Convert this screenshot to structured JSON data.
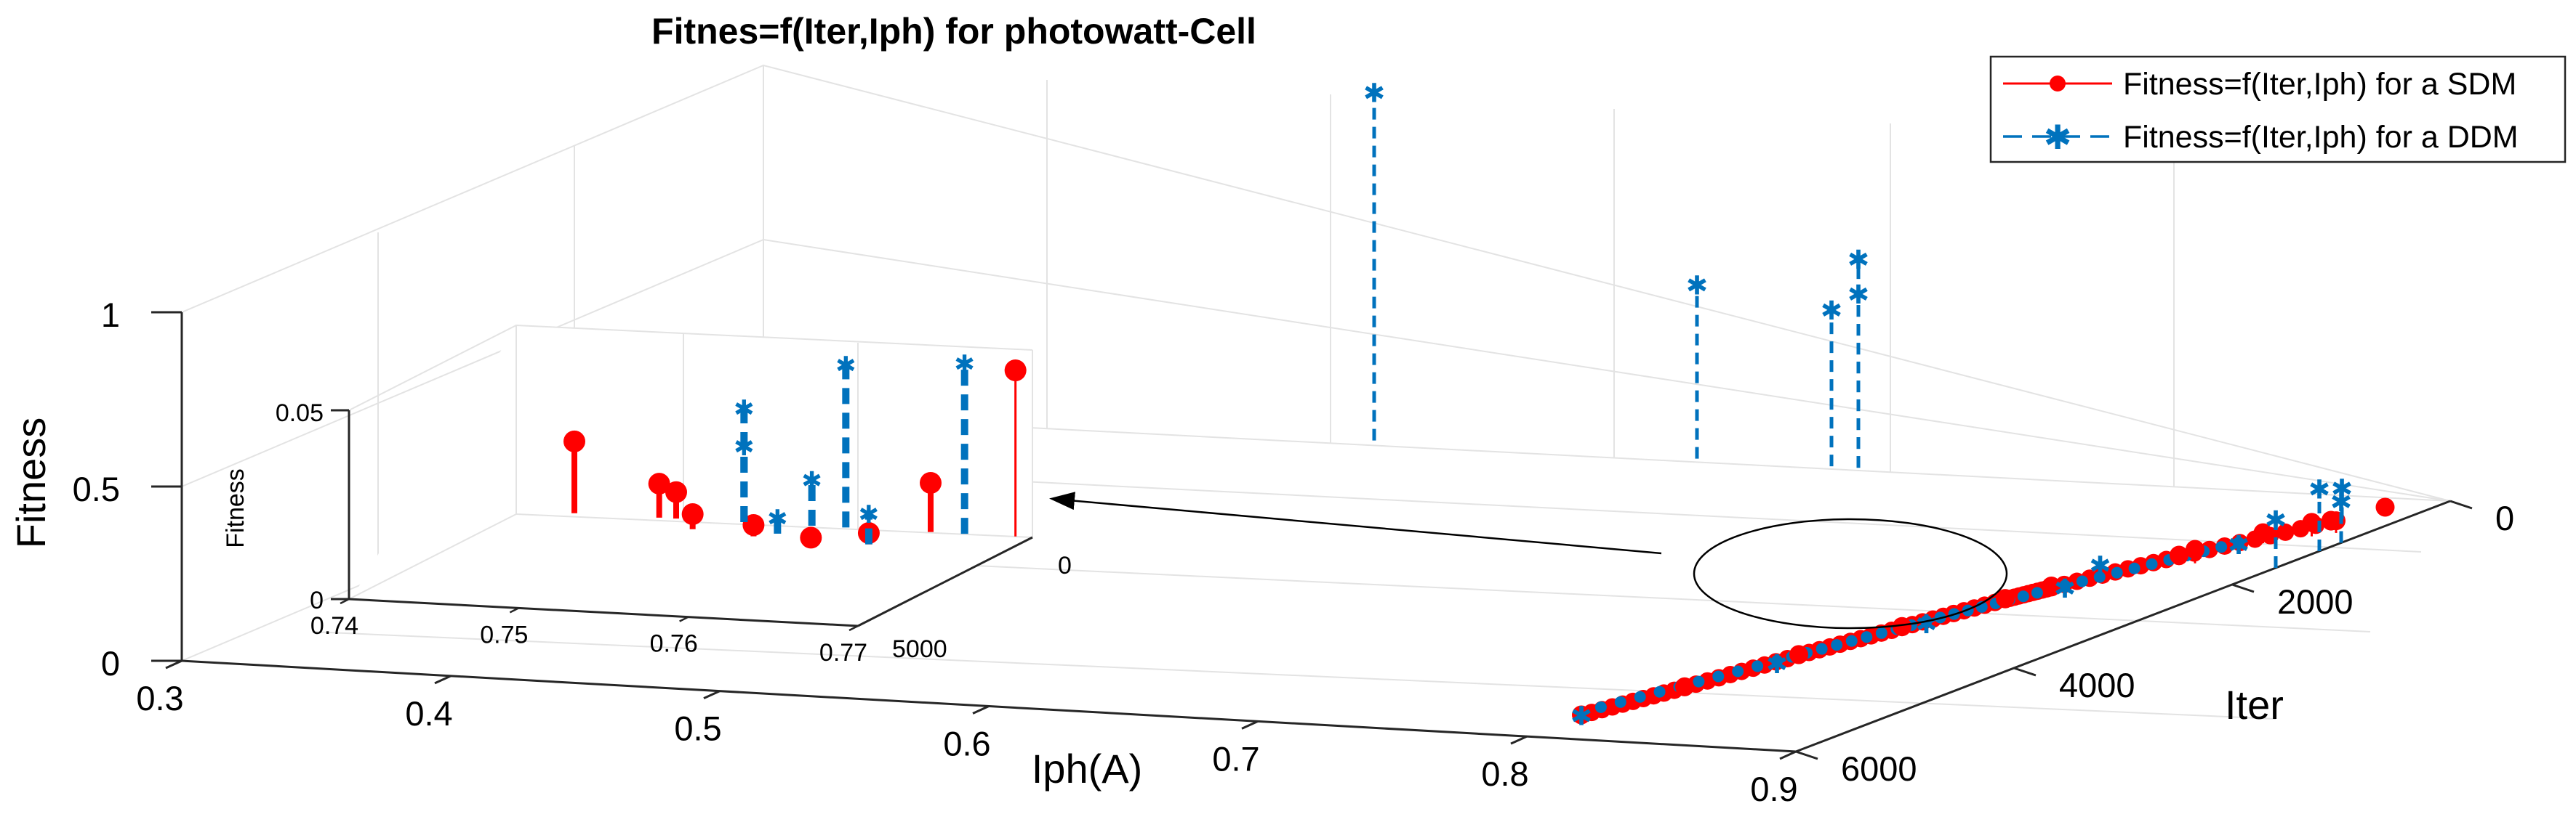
{
  "chart_data": [
    {
      "type": "3d-stem",
      "title": "Fitnes=f(Iter,Iph) for photowatt-Cell",
      "xlabel": "Iph(A)",
      "ylabel": "Iter",
      "zlabel": "Fitness",
      "xlim": [
        0.3,
        0.9
      ],
      "ylim": [
        0,
        6000
      ],
      "zlim": [
        0,
        1
      ],
      "x_ticks": [
        "0.3",
        "0.4",
        "0.5",
        "0.6",
        "0.7",
        "0.8",
        "0.9"
      ],
      "y_ticks": [
        "0",
        "2000",
        "4000",
        "6000"
      ],
      "z_ticks": [
        "0",
        "0.5",
        "1"
      ],
      "legend": [
        {
          "label": "Fitness=f(Iter,Iph) for a SDM",
          "color": "#ff0000",
          "marker": "circle",
          "line": "solid"
        },
        {
          "label": "Fitness=f(Iter,Iph) for a DDM",
          "color": "#0072bd",
          "marker": "asterisk",
          "line": "dashed"
        }
      ],
      "legend_position": "top-right",
      "series": [
        {
          "name": "SDM",
          "points": [
            {
              "iph": 0.8,
              "iter": 5500,
              "fitness": 0.002
            },
            {
              "iph": 0.81,
              "iter": 4800,
              "fitness": 0.003
            },
            {
              "iph": 0.82,
              "iter": 4000,
              "fitness": 0.004
            },
            {
              "iph": 0.83,
              "iter": 3300,
              "fitness": 0.005
            },
            {
              "iph": 0.84,
              "iter": 2600,
              "fitness": 0.006
            },
            {
              "iph": 0.845,
              "iter": 2300,
              "fitness": 0.008
            },
            {
              "iph": 0.86,
              "iter": 1500,
              "fitness": 0.007
            },
            {
              "iph": 0.88,
              "iter": 600,
              "fitness": 0.008
            },
            {
              "iph": 0.885,
              "iter": 900,
              "fitness": 0.04
            },
            {
              "iph": 0.875,
              "iter": 1100,
              "fitness": 0.03
            },
            {
              "iph": 0.89,
              "iter": 800,
              "fitness": 0.035
            },
            {
              "iph": 0.87,
              "iter": 1600,
              "fitness": 0.04
            },
            {
              "iph": 0.89,
              "iter": 350,
              "fitness": 0.02
            }
          ]
        },
        {
          "name": "DDM",
          "points": [
            {
              "iph": 0.8,
              "iter": 5500,
              "fitness": 0.002
            },
            {
              "iph": 0.82,
              "iter": 4200,
              "fitness": 0.004
            },
            {
              "iph": 0.835,
              "iter": 3200,
              "fitness": 0.005
            },
            {
              "iph": 0.85,
              "iter": 2300,
              "fitness": 0.006
            },
            {
              "iph": 0.855,
              "iter": 2100,
              "fitness": 0.05
            },
            {
              "iph": 0.87,
              "iter": 1200,
              "fitness": 0.008
            },
            {
              "iph": 0.88,
              "iter": 500,
              "fitness": 0.09
            },
            {
              "iph": 0.9,
              "iter": 1600,
              "fitness": 0.14
            },
            {
              "iph": 0.9,
              "iter": 1200,
              "fitness": 0.18
            },
            {
              "iph": 0.9,
              "iter": 1000,
              "fitness": 0.12
            },
            {
              "iph": 0.5,
              "iter": 0,
              "fitness": 1.0
            },
            {
              "iph": 0.62,
              "iter": 0,
              "fitness": 0.5
            },
            {
              "iph": 0.67,
              "iter": 0,
              "fitness": 0.45
            },
            {
              "iph": 0.68,
              "iter": 0,
              "fitness": 0.6
            },
            {
              "iph": 0.68,
              "iter": 0,
              "fitness": 0.5
            }
          ]
        }
      ],
      "annotations": [
        "circle marks the cluster magnified in the inset",
        "arrow points from the cluster to the inset"
      ]
    },
    {
      "type": "3d-stem-inset",
      "zlabel": "Fitness",
      "xlim": [
        0.74,
        0.77
      ],
      "zlim": [
        0,
        0.05
      ],
      "x_ticks": [
        "0.74",
        "0.75",
        "0.76",
        "0.77"
      ],
      "y_ticks": [
        "0",
        "5000"
      ],
      "z_ticks": [
        "0",
        "0.05"
      ],
      "series": [
        {
          "name": "SDM",
          "points": [
            {
              "iph": 0.743,
              "iter": 0,
              "fitness": 0.019
            },
            {
              "iph": 0.748,
              "iter": 0,
              "fitness": 0.009
            },
            {
              "iph": 0.749,
              "iter": 0,
              "fitness": 0.007
            },
            {
              "iph": 0.751,
              "iter": 500,
              "fitness": 0.004
            },
            {
              "iph": 0.755,
              "iter": 700,
              "fitness": 0.003
            },
            {
              "iph": 0.759,
              "iter": 1000,
              "fitness": 0.002
            },
            {
              "iph": 0.762,
              "iter": 800,
              "fitness": 0.003
            },
            {
              "iph": 0.764,
              "iter": 0,
              "fitness": 0.013
            },
            {
              "iph": 0.769,
              "iter": 0,
              "fitness": 0.044
            }
          ]
        },
        {
          "name": "DDM",
          "points": [
            {
              "iph": 0.753,
              "iter": 0,
              "fitness": 0.03
            },
            {
              "iph": 0.753,
              "iter": 0,
              "fitness": 0.02
            },
            {
              "iph": 0.757,
              "iter": 0,
              "fitness": 0.012
            },
            {
              "iph": 0.759,
              "iter": 0,
              "fitness": 0.043
            },
            {
              "iph": 0.762,
              "iter": 800,
              "fitness": 0.008
            },
            {
              "iph": 0.766,
              "iter": 0,
              "fitness": 0.045
            },
            {
              "iph": 0.756,
              "iter": 500,
              "fitness": 0.004
            }
          ]
        }
      ]
    }
  ]
}
